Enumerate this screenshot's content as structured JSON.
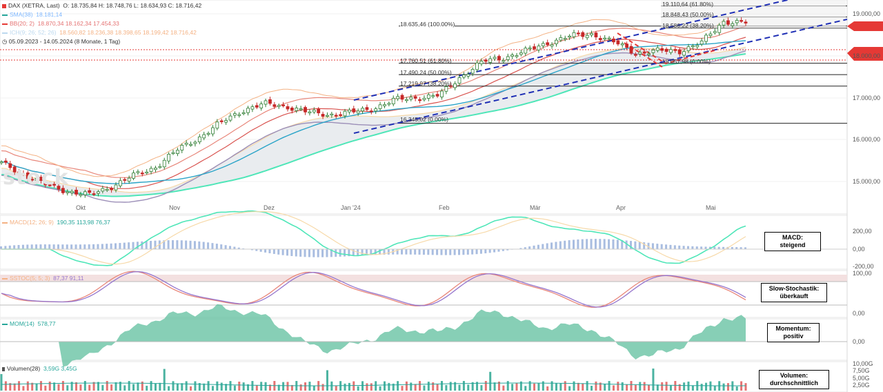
{
  "header": {
    "instrument": "DAX (XETRA, Last)",
    "ohlc": "O: 18.735,84  H: 18.748,76  L: 18.634,93  C: 18.716,42",
    "sma": "SMA(38)",
    "sma_value": "18.181,14",
    "bb": "BB(20; 2)",
    "bb_values": "18.870,34  18.162,34  17.454,33",
    "ichimoku": "ICH(9; 26; 52; 26)",
    "ichimoku_values": "18.560,82  18.236,38  18.398,65  18.199,42  18.716,42",
    "period": "05.09.2023 - 14.05.2024  (8 Monate, 1 Tag)",
    "colors": {
      "sma": "#26a69a",
      "bb": "#e53935",
      "ichimoku": "#f4b183"
    }
  },
  "watermark": "stock",
  "x_axis": [
    "Okt",
    "Nov",
    "Dez",
    "Jan '24",
    "Feb",
    "Mär",
    "Apr",
    "Mai"
  ],
  "y_axis_main": [
    "19.000,00",
    "18.000,00",
    "17.000,00",
    "16.000,00",
    "15.000,00"
  ],
  "y_axis_macd": [
    "200,00",
    "0,00",
    "-200,00"
  ],
  "y_axis_stoch": [
    "100,00",
    "0,00"
  ],
  "y_axis_mom": [
    "0,00"
  ],
  "y_axis_vol": [
    "10,00G",
    "7,50G",
    "5,00G",
    "2,50G"
  ],
  "fib_upper": [
    {
      "label": "18.635,46 (100.00%)"
    },
    {
      "label": "19.110,64 (61.80%)"
    },
    {
      "label": "18.848,43 (50.00%)"
    },
    {
      "label": "18.586,22 (38.20%)"
    },
    {
      "label": "18.057,98 (0.00%)"
    }
  ],
  "fib_lower": [
    {
      "label": "17.760,51 (61.80%)"
    },
    {
      "label": "17.490,24 (50.00%)"
    },
    {
      "label": "17.219,97 (38.20%)"
    },
    {
      "label": "16.345,02 (0.00%)"
    }
  ],
  "indicators": {
    "macd": {
      "legend": "MACD(12; 26; 9)",
      "values": "190,35  113,98  76,37",
      "callout": "MACD:\nsteigend"
    },
    "stoch": {
      "legend": "SSTOC(5; 5; 3)",
      "values": "87,37  91,11",
      "callout": "Slow-Stochastik:\nüberkauft"
    },
    "mom": {
      "legend": "MOM(14)",
      "values": "578,77",
      "callout": "Momentum:\npositiv"
    },
    "vol": {
      "legend": "Volumen(28)",
      "values": "3,59G  3,45G",
      "callout": "Volumen:\ndurchschnittlich"
    }
  },
  "chart_data": {
    "type": "candlestick",
    "instrument": "DAX (XETRA, Last)",
    "last_ohlc": {
      "open": 18735.84,
      "high": 18748.76,
      "low": 18634.93,
      "close": 18716.42
    },
    "x": [
      "Okt",
      "Nov",
      "Dez",
      "Jan '24",
      "Feb",
      "Mär",
      "Apr",
      "Mai"
    ],
    "close_path": [
      15400,
      15150,
      14900,
      14750,
      14650,
      14850,
      15100,
      15300,
      15700,
      16000,
      16350,
      16650,
      16800,
      16750,
      16600,
      16550,
      16600,
      16700,
      16900,
      16950,
      17000,
      17450,
      17800,
      17900,
      18050,
      18250,
      18400,
      18450,
      18250,
      18000,
      18050,
      18050,
      18250,
      18750,
      18716
    ],
    "ylim": [
      14500,
      19250
    ],
    "horizontal_levels": [
      18635.46,
      17760.51,
      17490.24,
      17219.97,
      16345.02,
      19110.64,
      18848.43,
      18586.22
    ],
    "macd": {
      "values": [
        190.35,
        113.98,
        76.37
      ],
      "ylim": [
        -200,
        300
      ]
    },
    "stochastic": {
      "values": [
        87.37,
        91.11
      ],
      "ylim": [
        0,
        100
      ]
    },
    "momentum": {
      "value": 578.77
    },
    "volume": {
      "values_G": [
        3.59,
        3.45
      ],
      "ylim": [
        0,
        10
      ]
    }
  }
}
